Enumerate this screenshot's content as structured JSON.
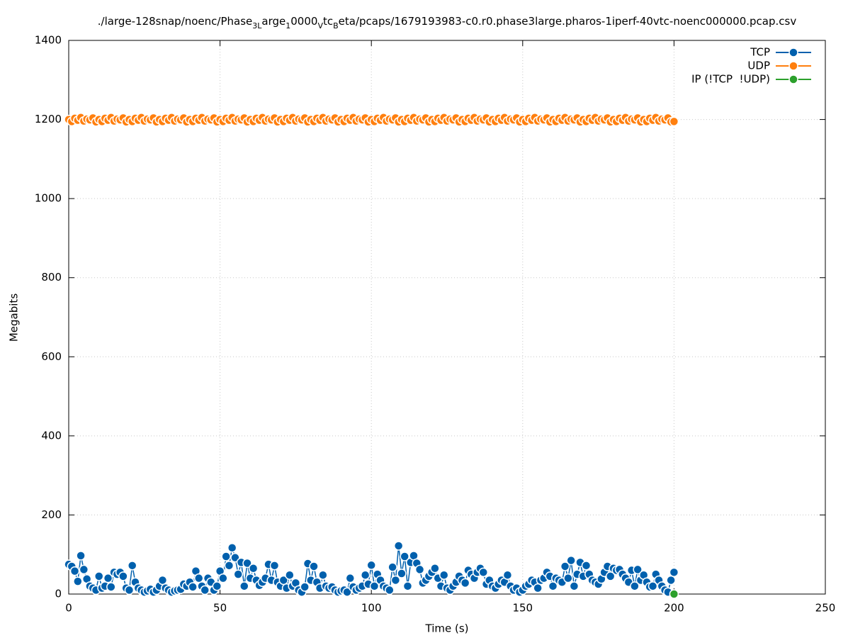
{
  "chart_data": {
    "type": "linespoints",
    "title_segments": [
      {
        "text": "./large-128snap/noenc/Phase",
        "subscript": false
      },
      {
        "text": "3L",
        "subscript": true
      },
      {
        "text": "arge",
        "subscript": false
      },
      {
        "text": "1",
        "subscript": true
      },
      {
        "text": "0000",
        "subscript": false
      },
      {
        "text": "V",
        "subscript": true
      },
      {
        "text": "tc",
        "subscript": false
      },
      {
        "text": "B",
        "subscript": true
      },
      {
        "text": "eta/pcaps/1679193983-c0.r0.phase3large.pharos-1iperf-40vtc-noenc000000.pcap.csv",
        "subscript": false
      }
    ],
    "x_label": "Time (s)",
    "y_label": "Megabits",
    "xlim": [
      0,
      250
    ],
    "xticks": [
      0,
      50,
      100,
      150,
      200,
      250
    ],
    "ylim": [
      0,
      1400
    ],
    "yticks": [
      0,
      200,
      400,
      600,
      800,
      1000,
      1200,
      1400
    ],
    "grid": true,
    "legend_position": "top-right",
    "x": [
      0,
      1,
      2,
      3,
      4,
      5,
      6,
      7,
      8,
      9,
      10,
      11,
      12,
      13,
      14,
      15,
      16,
      17,
      18,
      19,
      20,
      21,
      22,
      23,
      24,
      25,
      26,
      27,
      28,
      29,
      30,
      31,
      32,
      33,
      34,
      35,
      36,
      37,
      38,
      39,
      40,
      41,
      42,
      43,
      44,
      45,
      46,
      47,
      48,
      49,
      50,
      51,
      52,
      53,
      54,
      55,
      56,
      57,
      58,
      59,
      60,
      61,
      62,
      63,
      64,
      65,
      66,
      67,
      68,
      69,
      70,
      71,
      72,
      73,
      74,
      75,
      76,
      77,
      78,
      79,
      80,
      81,
      82,
      83,
      84,
      85,
      86,
      87,
      88,
      89,
      90,
      91,
      92,
      93,
      94,
      95,
      96,
      97,
      98,
      99,
      100,
      101,
      102,
      103,
      104,
      105,
      106,
      107,
      108,
      109,
      110,
      111,
      112,
      113,
      114,
      115,
      116,
      117,
      118,
      119,
      120,
      121,
      122,
      123,
      124,
      125,
      126,
      127,
      128,
      129,
      130,
      131,
      132,
      133,
      134,
      135,
      136,
      137,
      138,
      139,
      140,
      141,
      142,
      143,
      144,
      145,
      146,
      147,
      148,
      149,
      150,
      151,
      152,
      153,
      154,
      155,
      156,
      157,
      158,
      159,
      160,
      161,
      162,
      163,
      164,
      165,
      166,
      167,
      168,
      169,
      170,
      171,
      172,
      173,
      174,
      175,
      176,
      177,
      178,
      179,
      180,
      181,
      182,
      183,
      184,
      185,
      186,
      187,
      188,
      189,
      190,
      191,
      192,
      193,
      194,
      195,
      196,
      197,
      198,
      199,
      200
    ],
    "series": [
      {
        "name": "TCP",
        "color": "#0060ad",
        "values": [
          75,
          70,
          58,
          32,
          97,
          62,
          38,
          20,
          15,
          10,
          45,
          15,
          20,
          40,
          18,
          55,
          50,
          55,
          45,
          15,
          10,
          72,
          30,
          15,
          10,
          5,
          8,
          12,
          5,
          10,
          20,
          35,
          15,
          10,
          5,
          8,
          10,
          12,
          25,
          20,
          30,
          18,
          58,
          40,
          20,
          10,
          40,
          30,
          10,
          20,
          58,
          40,
          95,
          72,
          117,
          92,
          50,
          80,
          20,
          78,
          40,
          65,
          35,
          22,
          30,
          40,
          75,
          35,
          72,
          30,
          20,
          35,
          15,
          48,
          20,
          28,
          10,
          5,
          18,
          77,
          35,
          70,
          30,
          15,
          48,
          20,
          15,
          18,
          10,
          5,
          8,
          10,
          5,
          40,
          18,
          10,
          15,
          20,
          48,
          25,
          73,
          20,
          50,
          35,
          20,
          15,
          10,
          68,
          35,
          122,
          52,
          95,
          20,
          80,
          97,
          78,
          62,
          28,
          35,
          45,
          55,
          65,
          40,
          20,
          48,
          15,
          10,
          20,
          30,
          45,
          35,
          28,
          60,
          50,
          40,
          55,
          65,
          55,
          25,
          35,
          20,
          15,
          25,
          35,
          30,
          48,
          20,
          10,
          15,
          5,
          10,
          20,
          25,
          35,
          30,
          15,
          35,
          40,
          55,
          45,
          20,
          40,
          35,
          30,
          70,
          40,
          85,
          20,
          50,
          80,
          45,
          72,
          50,
          35,
          30,
          25,
          38,
          55,
          70,
          45,
          65,
          60,
          62,
          50,
          40,
          30,
          60,
          20,
          62,
          35,
          48,
          30,
          18,
          20,
          50,
          35,
          20,
          10,
          5,
          35,
          55
        ]
      },
      {
        "name": "UDP",
        "color": "#ff7f0e",
        "values": [
          1200,
          1195,
          1203,
          1198,
          1205,
          1196,
          1201,
          1199,
          1204,
          1194,
          1200,
          1195,
          1203,
          1198,
          1205,
          1196,
          1201,
          1199,
          1204,
          1194,
          1200,
          1195,
          1203,
          1198,
          1205,
          1196,
          1201,
          1199,
          1204,
          1194,
          1200,
          1195,
          1203,
          1198,
          1205,
          1196,
          1201,
          1199,
          1204,
          1194,
          1200,
          1195,
          1203,
          1198,
          1205,
          1196,
          1201,
          1199,
          1204,
          1194,
          1200,
          1195,
          1203,
          1198,
          1205,
          1196,
          1201,
          1199,
          1204,
          1194,
          1200,
          1195,
          1203,
          1198,
          1205,
          1196,
          1201,
          1199,
          1204,
          1194,
          1200,
          1195,
          1203,
          1198,
          1205,
          1196,
          1201,
          1199,
          1204,
          1194,
          1200,
          1195,
          1203,
          1198,
          1205,
          1196,
          1201,
          1199,
          1204,
          1194,
          1200,
          1195,
          1203,
          1198,
          1205,
          1196,
          1201,
          1199,
          1204,
          1194,
          1200,
          1195,
          1203,
          1198,
          1205,
          1196,
          1201,
          1199,
          1204,
          1194,
          1200,
          1195,
          1203,
          1198,
          1205,
          1196,
          1201,
          1199,
          1204,
          1194,
          1200,
          1195,
          1203,
          1198,
          1205,
          1196,
          1201,
          1199,
          1204,
          1194,
          1200,
          1195,
          1203,
          1198,
          1205,
          1196,
          1201,
          1199,
          1204,
          1194,
          1200,
          1195,
          1203,
          1198,
          1205,
          1196,
          1201,
          1199,
          1204,
          1194,
          1200,
          1195,
          1203,
          1198,
          1205,
          1196,
          1201,
          1199,
          1204,
          1194,
          1200,
          1195,
          1203,
          1198,
          1205,
          1196,
          1201,
          1199,
          1204,
          1194,
          1200,
          1195,
          1203,
          1198,
          1205,
          1196,
          1201,
          1199,
          1204,
          1194,
          1200,
          1195,
          1203,
          1198,
          1205,
          1196,
          1201,
          1199,
          1204,
          1194,
          1200,
          1195,
          1203,
          1198,
          1205,
          1196,
          1201,
          1199,
          1204,
          1194,
          1195
        ]
      },
      {
        "name": "IP (!TCP  !UDP)",
        "color": "#2ca02c",
        "x": [
          200
        ],
        "values": [
          0
        ]
      }
    ]
  }
}
